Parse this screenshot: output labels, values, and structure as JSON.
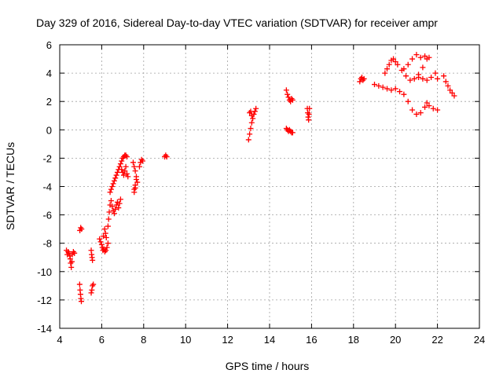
{
  "chart_data": {
    "type": "scatter",
    "title": "Day 329 of 2016, Sidereal Day-to-day VTEC variation (SDTVAR) for receiver ampr",
    "xlabel": "GPS time / hours",
    "ylabel": "SDTVAR / TECUs",
    "xlim": [
      4,
      24
    ],
    "ylim": [
      -14,
      6
    ],
    "xticks": [
      "4",
      "6",
      "8",
      "10",
      "12",
      "14",
      "16",
      "18",
      "20",
      "22",
      "24"
    ],
    "yticks": [
      "6",
      "4",
      "2",
      "0",
      "-2",
      "-4",
      "-6",
      "-8",
      "-10",
      "-12",
      "-14"
    ],
    "grid": true,
    "marker": "+",
    "colors": {
      "series": "#ff0000",
      "grid": "#a0a0a0",
      "axis": "#000000"
    },
    "series": [
      {
        "values": [
          [
            4.32,
            -8.5
          ],
          [
            4.36,
            -8.8
          ],
          [
            4.4,
            -8.6
          ],
          [
            4.44,
            -8.7
          ],
          [
            4.48,
            -8.9
          ],
          [
            4.5,
            -9.1
          ],
          [
            4.52,
            -9.4
          ],
          [
            4.55,
            -9.7
          ],
          [
            4.58,
            -9.3
          ],
          [
            4.6,
            -8.8
          ],
          [
            4.65,
            -8.6
          ],
          [
            4.7,
            -8.7
          ],
          [
            4.95,
            -10.9
          ],
          [
            4.97,
            -11.3
          ],
          [
            4.99,
            -11.6
          ],
          [
            5.01,
            -11.9
          ],
          [
            5.03,
            -12.1
          ],
          [
            4.96,
            -7.1
          ],
          [
            5.0,
            -6.9
          ],
          [
            5.04,
            -7.0
          ],
          [
            5.5,
            -8.5
          ],
          [
            5.52,
            -8.8
          ],
          [
            5.54,
            -9.0
          ],
          [
            5.56,
            -9.2
          ],
          [
            5.5,
            -11.5
          ],
          [
            5.53,
            -11.3
          ],
          [
            5.56,
            -11.0
          ],
          [
            5.6,
            -10.9
          ],
          [
            5.9,
            -7.7
          ],
          [
            5.95,
            -7.9
          ],
          [
            6.0,
            -8.1
          ],
          [
            6.03,
            -8.3
          ],
          [
            6.06,
            -8.5
          ],
          [
            6.1,
            -8.4
          ],
          [
            6.15,
            -8.6
          ],
          [
            6.2,
            -8.5
          ],
          [
            6.25,
            -8.3
          ],
          [
            6.3,
            -8.0
          ],
          [
            6.22,
            -7.6
          ],
          [
            6.18,
            -7.3
          ],
          [
            6.14,
            -7.0
          ],
          [
            6.08,
            -7.5
          ],
          [
            6.3,
            -6.8
          ],
          [
            6.33,
            -6.3
          ],
          [
            6.36,
            -5.8
          ],
          [
            6.4,
            -5.3
          ],
          [
            6.45,
            -5.0
          ],
          [
            6.5,
            -5.4
          ],
          [
            6.55,
            -5.7
          ],
          [
            6.6,
            -5.9
          ],
          [
            6.65,
            -5.6
          ],
          [
            6.7,
            -5.3
          ],
          [
            6.75,
            -5.1
          ],
          [
            6.8,
            -5.5
          ],
          [
            6.85,
            -5.2
          ],
          [
            6.9,
            -4.9
          ],
          [
            6.4,
            -4.4
          ],
          [
            6.45,
            -4.2
          ],
          [
            6.5,
            -4.0
          ],
          [
            6.55,
            -3.8
          ],
          [
            6.6,
            -3.6
          ],
          [
            6.65,
            -3.4
          ],
          [
            6.7,
            -3.2
          ],
          [
            6.75,
            -3.0
          ],
          [
            6.8,
            -2.8
          ],
          [
            6.85,
            -2.6
          ],
          [
            6.9,
            -2.4
          ],
          [
            6.95,
            -2.2
          ],
          [
            7.0,
            -2.0
          ],
          [
            7.05,
            -1.9
          ],
          [
            7.1,
            -1.8
          ],
          [
            7.15,
            -1.8
          ],
          [
            7.2,
            -1.9
          ],
          [
            6.95,
            -2.8
          ],
          [
            7.0,
            -3.0
          ],
          [
            7.05,
            -3.2
          ],
          [
            7.1,
            -2.9
          ],
          [
            7.15,
            -2.6
          ],
          [
            7.2,
            -3.1
          ],
          [
            7.25,
            -3.3
          ],
          [
            7.5,
            -2.3
          ],
          [
            7.55,
            -2.6
          ],
          [
            7.6,
            -2.9
          ],
          [
            7.65,
            -3.3
          ],
          [
            7.7,
            -3.7
          ],
          [
            7.6,
            -4.1
          ],
          [
            7.55,
            -4.4
          ],
          [
            7.8,
            -2.6
          ],
          [
            7.85,
            -2.3
          ],
          [
            7.9,
            -2.1
          ],
          [
            7.95,
            -2.2
          ],
          [
            7.55,
            -4.2
          ],
          [
            7.6,
            -3.9
          ],
          [
            7.65,
            -3.5
          ],
          [
            9.0,
            -1.9
          ],
          [
            9.05,
            -1.8
          ],
          [
            9.1,
            -1.9
          ],
          [
            13.0,
            -0.7
          ],
          [
            13.05,
            -0.3
          ],
          [
            13.1,
            0.1
          ],
          [
            13.15,
            0.5
          ],
          [
            13.2,
            0.8
          ],
          [
            13.25,
            1.1
          ],
          [
            13.3,
            1.3
          ],
          [
            13.35,
            1.5
          ],
          [
            13.1,
            1.3
          ],
          [
            13.05,
            1.2
          ],
          [
            13.15,
            1.0
          ],
          [
            14.8,
            2.8
          ],
          [
            14.85,
            2.5
          ],
          [
            14.9,
            2.3
          ],
          [
            14.95,
            2.1
          ],
          [
            15.0,
            2.0
          ],
          [
            15.05,
            2.2
          ],
          [
            15.1,
            2.1
          ],
          [
            14.8,
            0.1
          ],
          [
            14.85,
            0.0
          ],
          [
            14.9,
            -0.1
          ],
          [
            14.95,
            0.0
          ],
          [
            15.0,
            -0.1
          ],
          [
            15.05,
            -0.2
          ],
          [
            15.1,
            -0.2
          ],
          [
            15.8,
            1.5
          ],
          [
            15.82,
            1.2
          ],
          [
            15.84,
            0.9
          ],
          [
            15.86,
            0.7
          ],
          [
            15.88,
            1.1
          ],
          [
            15.9,
            1.5
          ],
          [
            18.3,
            3.4
          ],
          [
            18.35,
            3.6
          ],
          [
            18.4,
            3.7
          ],
          [
            18.45,
            3.5
          ],
          [
            18.5,
            3.6
          ],
          [
            19.0,
            3.2
          ],
          [
            19.2,
            3.1
          ],
          [
            19.4,
            3.0
          ],
          [
            19.6,
            2.9
          ],
          [
            19.8,
            2.8
          ],
          [
            20.0,
            2.9
          ],
          [
            20.2,
            2.7
          ],
          [
            20.4,
            2.5
          ],
          [
            20.6,
            2.0
          ],
          [
            20.8,
            1.4
          ],
          [
            21.0,
            1.1
          ],
          [
            21.2,
            1.2
          ],
          [
            21.4,
            1.6
          ],
          [
            21.5,
            1.9
          ],
          [
            21.6,
            1.7
          ],
          [
            21.8,
            1.5
          ],
          [
            22.0,
            1.4
          ],
          [
            19.5,
            4.0
          ],
          [
            19.6,
            4.3
          ],
          [
            19.7,
            4.6
          ],
          [
            19.8,
            4.9
          ],
          [
            19.9,
            5.0
          ],
          [
            20.0,
            4.8
          ],
          [
            20.1,
            4.6
          ],
          [
            20.3,
            4.2
          ],
          [
            20.5,
            3.8
          ],
          [
            20.7,
            3.5
          ],
          [
            20.9,
            3.6
          ],
          [
            21.1,
            3.9
          ],
          [
            21.3,
            4.4
          ],
          [
            21.5,
            5.0
          ],
          [
            21.6,
            5.1
          ],
          [
            21.4,
            5.2
          ],
          [
            21.2,
            5.1
          ],
          [
            21.0,
            5.3
          ],
          [
            20.8,
            5.0
          ],
          [
            20.6,
            4.6
          ],
          [
            20.4,
            4.3
          ],
          [
            21.1,
            3.7
          ],
          [
            21.3,
            3.6
          ],
          [
            21.5,
            3.5
          ],
          [
            21.7,
            3.7
          ],
          [
            21.9,
            4.0
          ],
          [
            22.0,
            3.6
          ],
          [
            22.3,
            3.8
          ],
          [
            22.4,
            3.4
          ],
          [
            22.5,
            3.1
          ],
          [
            22.6,
            2.8
          ],
          [
            22.7,
            2.6
          ],
          [
            22.8,
            2.4
          ]
        ]
      }
    ]
  }
}
